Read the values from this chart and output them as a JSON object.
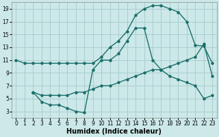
{
  "xlabel": "Humidex (Indice chaleur)",
  "bg_color": "#cce8e8",
  "grid_color": "#aacece",
  "line_color": "#1a6e6a",
  "xlim": [
    -0.5,
    23.5
  ],
  "ylim": [
    2,
    20
  ],
  "xticks": [
    0,
    1,
    2,
    3,
    4,
    5,
    6,
    7,
    8,
    9,
    10,
    11,
    12,
    13,
    14,
    15,
    16,
    17,
    18,
    19,
    20,
    21,
    22,
    23
  ],
  "yticks": [
    3,
    5,
    7,
    9,
    11,
    13,
    15,
    17,
    19
  ],
  "s1x": [
    0,
    1,
    2,
    3,
    4,
    5,
    6,
    7,
    8,
    9,
    10,
    11,
    12,
    13,
    14,
    15,
    16,
    17,
    18,
    19,
    20,
    21,
    22,
    23
  ],
  "s1y": [
    11,
    10.5,
    10.5,
    10.5,
    10.5,
    10.5,
    10.5,
    10.5,
    10.5,
    10.5,
    11.5,
    13.0,
    14.0,
    15.5,
    18.0,
    19.0,
    19.5,
    19.5,
    19.0,
    18.5,
    17.0,
    13.3,
    13.2,
    10.5
  ],
  "s2x": [
    2,
    3,
    4,
    5,
    6,
    7,
    8,
    9,
    10,
    11,
    12,
    13,
    14,
    15,
    16,
    17,
    18,
    19,
    20,
    21,
    22,
    23
  ],
  "s2y": [
    6.0,
    4.5,
    4.0,
    4.0,
    3.5,
    3.0,
    2.8,
    9.5,
    11.0,
    11.0,
    12.0,
    14.0,
    16.0,
    16.0,
    11.0,
    9.5,
    8.5,
    8.0,
    7.5,
    7.0,
    5.0,
    5.5
  ],
  "s3x": [
    2,
    3,
    4,
    5,
    6,
    7,
    8,
    9,
    10,
    11,
    12,
    13,
    14,
    15,
    16,
    17,
    18,
    19,
    20,
    21,
    22,
    23
  ],
  "s3y": [
    6.0,
    5.5,
    5.5,
    5.5,
    5.5,
    6.0,
    6.0,
    6.5,
    7.0,
    7.0,
    7.5,
    8.0,
    8.5,
    9.0,
    9.5,
    9.5,
    10.0,
    10.5,
    11.0,
    11.5,
    13.5,
    8.5
  ],
  "markersize": 2.2,
  "linewidth": 1.0,
  "tick_fontsize": 5.5,
  "xlabel_fontsize": 7.0
}
